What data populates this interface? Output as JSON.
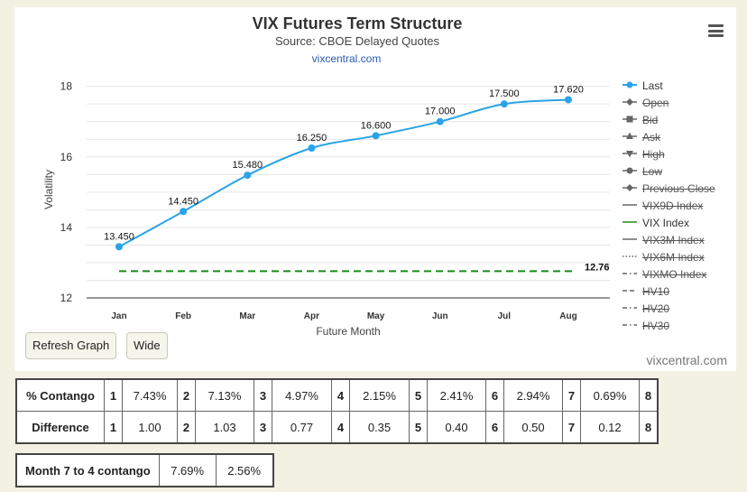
{
  "page": {
    "title": "VIX Futures Term Structure",
    "subtitle": "Source: CBOE Delayed Quotes",
    "credit_top": "vixcentral.com",
    "credit_bottom": "vixcentral.com",
    "accent_color": "#2aa3e8",
    "vix_line_color": "#1a8a1a"
  },
  "buttons": {
    "refresh": "Refresh Graph",
    "wide": "Wide"
  },
  "menu": {
    "icon": "hamburger-menu-icon"
  },
  "chart_data": {
    "type": "line",
    "xlabel": "Future Month",
    "ylabel": "Volatility",
    "categories": [
      "Jan",
      "Feb",
      "Mar",
      "Apr",
      "May",
      "Jun",
      "Jul",
      "Aug"
    ],
    "yticks": [
      "12",
      "14",
      "16",
      "18"
    ],
    "ylim": [
      12,
      18.4
    ],
    "grid": true,
    "series": [
      {
        "name": "Last",
        "values": [
          13.45,
          14.45,
          15.48,
          16.25,
          16.6,
          17.0,
          17.5,
          17.62
        ],
        "labels": [
          "13.450",
          "14.450",
          "15.480",
          "16.250",
          "16.600",
          "17.000",
          "17.500",
          "17.620"
        ],
        "color": "#2aa3e8"
      },
      {
        "name": "VIX Index",
        "value": 12.76,
        "label": "12.76",
        "style": "dashed",
        "color": "#1a8a1a"
      }
    ],
    "legend_position": "right"
  },
  "legend": [
    {
      "label": "Last",
      "symbol": "circle-line",
      "hidden": false,
      "color": "#2aa3e8"
    },
    {
      "label": "Open",
      "symbol": "diamond-line",
      "hidden": true,
      "color": "#666666"
    },
    {
      "label": "Bid",
      "symbol": "square-line",
      "hidden": true,
      "color": "#666666"
    },
    {
      "label": "Ask",
      "symbol": "triangle-line",
      "hidden": true,
      "color": "#666666"
    },
    {
      "label": "High",
      "symbol": "triangle-down-line",
      "hidden": true,
      "color": "#666666"
    },
    {
      "label": "Low",
      "symbol": "circle-line",
      "hidden": true,
      "color": "#666666"
    },
    {
      "label": "Previous Close",
      "symbol": "diamond-line",
      "hidden": true,
      "color": "#666666"
    },
    {
      "label": "VIX9D Index",
      "symbol": "solid-line",
      "hidden": true,
      "color": "#666666"
    },
    {
      "label": "VIX Index",
      "symbol": "solid-line",
      "hidden": false,
      "color": "#1a8a1a"
    },
    {
      "label": "VIX3M Index",
      "symbol": "solid-line",
      "hidden": true,
      "color": "#666666"
    },
    {
      "label": "VIX6M Index",
      "symbol": "dotted-line",
      "hidden": true,
      "color": "#666666"
    },
    {
      "label": "VIXMO Index",
      "symbol": "dashdot-line",
      "hidden": true,
      "color": "#666666"
    },
    {
      "label": "HV10",
      "symbol": "dash-line",
      "hidden": true,
      "color": "#666666"
    },
    {
      "label": "HV20",
      "symbol": "dashdot-line",
      "hidden": true,
      "color": "#666666"
    },
    {
      "label": "HV30",
      "symbol": "dashdot-line",
      "hidden": true,
      "color": "#666666"
    }
  ],
  "contango_table": {
    "rows": [
      {
        "label": "% Contango",
        "cells": [
          [
            "1",
            "7.43%"
          ],
          [
            "2",
            "7.13%"
          ],
          [
            "3",
            "4.97%"
          ],
          [
            "4",
            "2.15%"
          ],
          [
            "5",
            "2.41%"
          ],
          [
            "6",
            "2.94%"
          ],
          [
            "7",
            "0.69%"
          ],
          [
            "8",
            ""
          ]
        ]
      },
      {
        "label": "Difference",
        "cells": [
          [
            "1",
            "1.00"
          ],
          [
            "2",
            "1.03"
          ],
          [
            "3",
            "0.77"
          ],
          [
            "4",
            "0.35"
          ],
          [
            "5",
            "0.40"
          ],
          [
            "6",
            "0.50"
          ],
          [
            "7",
            "0.12"
          ],
          [
            "8",
            ""
          ]
        ]
      }
    ]
  },
  "month74_table": {
    "label": "Month 7 to 4 contango",
    "values": [
      "7.69%",
      "2.56%"
    ]
  }
}
